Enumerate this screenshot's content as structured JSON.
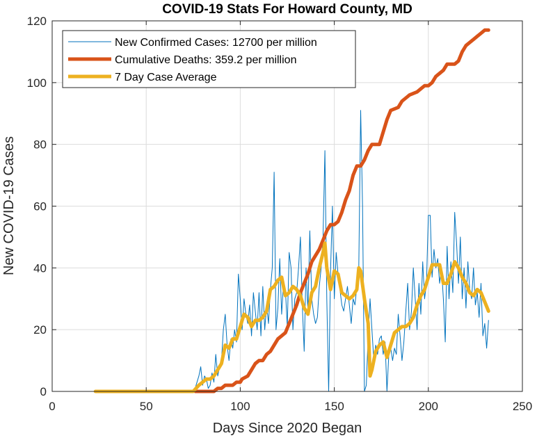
{
  "chart_data": {
    "type": "line",
    "title": "COVID-19 Stats For Howard County, MD",
    "xlabel": "Days Since 2020 Began",
    "ylabel": "New COVID-19 Cases",
    "xlim": [
      0,
      250
    ],
    "ylim": [
      0,
      120
    ],
    "xticks": [
      0,
      50,
      100,
      150,
      200,
      250
    ],
    "yticks": [
      0,
      20,
      40,
      60,
      80,
      100,
      120
    ],
    "grid": true,
    "legend_position": "top-left",
    "series": [
      {
        "name": "New Confirmed Cases: 12700 per million",
        "color": "#0072BD",
        "style": "thin",
        "points": [
          [
            23,
            0
          ],
          [
            30,
            0
          ],
          [
            40,
            0
          ],
          [
            50,
            0
          ],
          [
            60,
            0
          ],
          [
            70,
            0
          ],
          [
            75,
            0
          ],
          [
            76,
            1
          ],
          [
            77,
            3
          ],
          [
            78,
            5
          ],
          [
            79,
            8
          ],
          [
            80,
            2
          ],
          [
            81,
            5
          ],
          [
            82,
            4
          ],
          [
            83,
            1
          ],
          [
            84,
            2
          ],
          [
            85,
            6
          ],
          [
            86,
            3
          ],
          [
            87,
            12
          ],
          [
            88,
            5
          ],
          [
            89,
            8
          ],
          [
            90,
            10
          ],
          [
            91,
            20
          ],
          [
            92,
            25
          ],
          [
            93,
            15
          ],
          [
            94,
            10
          ],
          [
            95,
            17
          ],
          [
            96,
            14
          ],
          [
            97,
            20
          ],
          [
            98,
            16
          ],
          [
            99,
            38
          ],
          [
            100,
            30
          ],
          [
            101,
            20
          ],
          [
            102,
            30
          ],
          [
            103,
            25
          ],
          [
            104,
            22
          ],
          [
            105,
            28
          ],
          [
            106,
            18
          ],
          [
            107,
            32
          ],
          [
            108,
            26
          ],
          [
            109,
            20
          ],
          [
            110,
            32
          ],
          [
            111,
            18
          ],
          [
            112,
            34
          ],
          [
            113,
            20
          ],
          [
            114,
            28
          ],
          [
            115,
            22
          ],
          [
            116,
            33
          ],
          [
            117,
            40
          ],
          [
            118,
            71
          ],
          [
            119,
            20
          ],
          [
            120,
            27
          ],
          [
            121,
            43
          ],
          [
            122,
            25
          ],
          [
            123,
            35
          ],
          [
            124,
            33
          ],
          [
            125,
            21
          ],
          [
            126,
            45
          ],
          [
            127,
            40
          ],
          [
            128,
            20
          ],
          [
            129,
            30
          ],
          [
            130,
            32
          ],
          [
            131,
            40
          ],
          [
            132,
            50
          ],
          [
            133,
            28
          ],
          [
            134,
            13
          ],
          [
            135,
            40
          ],
          [
            136,
            26
          ],
          [
            137,
            52
          ],
          [
            138,
            30
          ],
          [
            139,
            25
          ],
          [
            140,
            22
          ],
          [
            141,
            24
          ],
          [
            142,
            34
          ],
          [
            143,
            40
          ],
          [
            144,
            50
          ],
          [
            145,
            78
          ],
          [
            146,
            30
          ],
          [
            147,
            0
          ],
          [
            148,
            39
          ],
          [
            149,
            60
          ],
          [
            150,
            30
          ],
          [
            151,
            45
          ],
          [
            152,
            38
          ],
          [
            153,
            33
          ],
          [
            154,
            28
          ],
          [
            155,
            26
          ],
          [
            156,
            30
          ],
          [
            157,
            34
          ],
          [
            158,
            28
          ],
          [
            159,
            22
          ],
          [
            160,
            30
          ],
          [
            161,
            28
          ],
          [
            162,
            34
          ],
          [
            163,
            40
          ],
          [
            164,
            91
          ],
          [
            165,
            60
          ],
          [
            166,
            0
          ],
          [
            167,
            2
          ],
          [
            168,
            18
          ],
          [
            169,
            30
          ],
          [
            170,
            20
          ],
          [
            171,
            10
          ],
          [
            172,
            15
          ],
          [
            173,
            12
          ],
          [
            174,
            17
          ],
          [
            175,
            18
          ],
          [
            176,
            12
          ],
          [
            177,
            16
          ],
          [
            178,
            0
          ],
          [
            179,
            12
          ],
          [
            180,
            14
          ],
          [
            181,
            10
          ],
          [
            182,
            14
          ],
          [
            183,
            12
          ],
          [
            184,
            25
          ],
          [
            185,
            18
          ],
          [
            186,
            10
          ],
          [
            187,
            16
          ],
          [
            188,
            26
          ],
          [
            189,
            35
          ],
          [
            190,
            20
          ],
          [
            191,
            26
          ],
          [
            192,
            40
          ],
          [
            193,
            30
          ],
          [
            194,
            20
          ],
          [
            195,
            35
          ],
          [
            196,
            25
          ],
          [
            197,
            42
          ],
          [
            198,
            30
          ],
          [
            199,
            35
          ],
          [
            200,
            57
          ],
          [
            201,
            57
          ],
          [
            202,
            37
          ],
          [
            203,
            46
          ],
          [
            204,
            40
          ],
          [
            205,
            43
          ],
          [
            206,
            35
          ],
          [
            207,
            40
          ],
          [
            208,
            30
          ],
          [
            209,
            16
          ],
          [
            210,
            47
          ],
          [
            211,
            30
          ],
          [
            212,
            42
          ],
          [
            213,
            32
          ],
          [
            214,
            58
          ],
          [
            215,
            48
          ],
          [
            216,
            35
          ],
          [
            217,
            50
          ],
          [
            218,
            30
          ],
          [
            219,
            40
          ],
          [
            220,
            27
          ],
          [
            221,
            42
          ],
          [
            222,
            33
          ],
          [
            223,
            30
          ],
          [
            224,
            40
          ],
          [
            225,
            28
          ],
          [
            226,
            32
          ],
          [
            227,
            24
          ],
          [
            228,
            35
          ],
          [
            229,
            18
          ],
          [
            230,
            22
          ],
          [
            231,
            14
          ],
          [
            232,
            23
          ]
        ]
      },
      {
        "name": "Cumulative Deaths: 359.2 per million",
        "color": "#D95319",
        "style": "thick",
        "points": [
          [
            76,
            0
          ],
          [
            86,
            0
          ],
          [
            88,
            1
          ],
          [
            90,
            1
          ],
          [
            92,
            2
          ],
          [
            96,
            2
          ],
          [
            98,
            3
          ],
          [
            100,
            3
          ],
          [
            101,
            4
          ],
          [
            104,
            5
          ],
          [
            106,
            7
          ],
          [
            108,
            9
          ],
          [
            110,
            10
          ],
          [
            112,
            10
          ],
          [
            114,
            12
          ],
          [
            116,
            13
          ],
          [
            118,
            15
          ],
          [
            120,
            17
          ],
          [
            122,
            18
          ],
          [
            124,
            19
          ],
          [
            126,
            22
          ],
          [
            128,
            25
          ],
          [
            130,
            28
          ],
          [
            132,
            32
          ],
          [
            134,
            35
          ],
          [
            136,
            38
          ],
          [
            138,
            42
          ],
          [
            140,
            44
          ],
          [
            142,
            46
          ],
          [
            144,
            49
          ],
          [
            146,
            52
          ],
          [
            148,
            54
          ],
          [
            150,
            54
          ],
          [
            152,
            55
          ],
          [
            154,
            58
          ],
          [
            156,
            62
          ],
          [
            158,
            65
          ],
          [
            160,
            70
          ],
          [
            162,
            73
          ],
          [
            164,
            73
          ],
          [
            166,
            75
          ],
          [
            168,
            78
          ],
          [
            170,
            80
          ],
          [
            174,
            80
          ],
          [
            176,
            84
          ],
          [
            178,
            88
          ],
          [
            180,
            91
          ],
          [
            184,
            92
          ],
          [
            186,
            94
          ],
          [
            188,
            95
          ],
          [
            190,
            96
          ],
          [
            194,
            97
          ],
          [
            196,
            98
          ],
          [
            198,
            99
          ],
          [
            200,
            99
          ],
          [
            202,
            100
          ],
          [
            204,
            102
          ],
          [
            206,
            103
          ],
          [
            208,
            104
          ],
          [
            210,
            106
          ],
          [
            214,
            106
          ],
          [
            216,
            107
          ],
          [
            218,
            110
          ],
          [
            220,
            112
          ],
          [
            222,
            113
          ],
          [
            224,
            114
          ],
          [
            226,
            115
          ],
          [
            228,
            116
          ],
          [
            230,
            117
          ],
          [
            232,
            117
          ]
        ]
      },
      {
        "name": "7 Day Case Average",
        "color": "#EDB120",
        "style": "thick",
        "points": [
          [
            23,
            0
          ],
          [
            50,
            0
          ],
          [
            75,
            0
          ],
          [
            78,
            2
          ],
          [
            80,
            3
          ],
          [
            82,
            4
          ],
          [
            84,
            4
          ],
          [
            86,
            5
          ],
          [
            88,
            7
          ],
          [
            90,
            9
          ],
          [
            92,
            15
          ],
          [
            94,
            14
          ],
          [
            96,
            17
          ],
          [
            98,
            17
          ],
          [
            100,
            21
          ],
          [
            102,
            25
          ],
          [
            104,
            24
          ],
          [
            106,
            21
          ],
          [
            108,
            23
          ],
          [
            110,
            23
          ],
          [
            112,
            24
          ],
          [
            114,
            26
          ],
          [
            116,
            33
          ],
          [
            118,
            34
          ],
          [
            120,
            36
          ],
          [
            122,
            37
          ],
          [
            124,
            31
          ],
          [
            126,
            32
          ],
          [
            128,
            34
          ],
          [
            130,
            33
          ],
          [
            132,
            31
          ],
          [
            134,
            27
          ],
          [
            136,
            25
          ],
          [
            138,
            32
          ],
          [
            140,
            34
          ],
          [
            142,
            40
          ],
          [
            144,
            45
          ],
          [
            145,
            48
          ],
          [
            146,
            40
          ],
          [
            148,
            33
          ],
          [
            150,
            39
          ],
          [
            152,
            38
          ],
          [
            154,
            32
          ],
          [
            156,
            31
          ],
          [
            158,
            30
          ],
          [
            160,
            31
          ],
          [
            162,
            33
          ],
          [
            163,
            40
          ],
          [
            164,
            39
          ],
          [
            166,
            30
          ],
          [
            168,
            22
          ],
          [
            169,
            5
          ],
          [
            170,
            7
          ],
          [
            172,
            13
          ],
          [
            174,
            15
          ],
          [
            176,
            16
          ],
          [
            178,
            11
          ],
          [
            180,
            15
          ],
          [
            182,
            19
          ],
          [
            184,
            20
          ],
          [
            186,
            21
          ],
          [
            188,
            21
          ],
          [
            190,
            22
          ],
          [
            192,
            24
          ],
          [
            194,
            28
          ],
          [
            196,
            31
          ],
          [
            198,
            33
          ],
          [
            200,
            37
          ],
          [
            202,
            41
          ],
          [
            204,
            41
          ],
          [
            206,
            41
          ],
          [
            208,
            35
          ],
          [
            210,
            35
          ],
          [
            212,
            38
          ],
          [
            214,
            42
          ],
          [
            216,
            40
          ],
          [
            218,
            37
          ],
          [
            220,
            35
          ],
          [
            222,
            32
          ],
          [
            224,
            31
          ],
          [
            226,
            33
          ],
          [
            228,
            32
          ],
          [
            230,
            29
          ],
          [
            232,
            26
          ]
        ]
      }
    ]
  }
}
